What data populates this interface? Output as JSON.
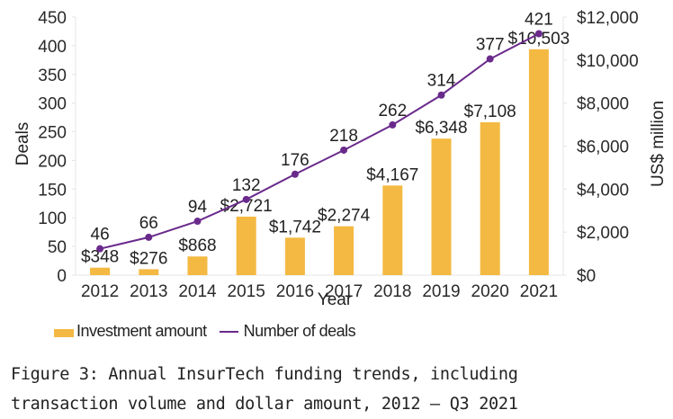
{
  "chart_data": {
    "type": "bar+line",
    "title": "",
    "categories": [
      "2012",
      "2013",
      "2014",
      "2015",
      "2016",
      "2017",
      "2018",
      "2019",
      "2020",
      "2021"
    ],
    "series": [
      {
        "name": "Investment amount",
        "type": "bar",
        "axis": "right",
        "values": [
          348,
          276,
          868,
          2721,
          1742,
          2274,
          4167,
          6348,
          7108,
          10503
        ],
        "labels": [
          "$348",
          "$276",
          "$868",
          "$2,721",
          "$1,742",
          "$2,274",
          "$4,167",
          "$6,348",
          "$7,108",
          "$10,503"
        ],
        "color": "#f4b942"
      },
      {
        "name": "Number of deals",
        "type": "line",
        "axis": "left",
        "values": [
          46,
          66,
          94,
          132,
          176,
          218,
          262,
          314,
          377,
          421
        ],
        "labels": [
          "46",
          "66",
          "94",
          "132",
          "176",
          "218",
          "262",
          "314",
          "377",
          "421"
        ],
        "color": "#6a2a8c"
      }
    ],
    "xlabel": "Year",
    "ylabel_left": "Deals",
    "ylabel_right": "US$ million",
    "ylim_left": [
      0,
      450
    ],
    "ylim_right": [
      0,
      12000
    ],
    "left_ticks": [
      "0",
      "50",
      "100",
      "150",
      "200",
      "250",
      "300",
      "350",
      "400",
      "450"
    ],
    "left_tick_values": [
      0,
      50,
      100,
      150,
      200,
      250,
      300,
      350,
      400,
      450
    ],
    "right_ticks": [
      "$0",
      "$2,000",
      "$4,000",
      "$6,000",
      "$8,000",
      "$10,000",
      "$12,000"
    ],
    "right_tick_values": [
      0,
      2000,
      4000,
      6000,
      8000,
      10000,
      12000
    ],
    "grid": false,
    "legend_position": "bottom-left"
  },
  "legend": {
    "bar_label": "Investment amount",
    "line_label": "Number of deals"
  },
  "caption": {
    "line1": "Figure 3: Annual InsurTech funding trends, including",
    "line2": "transaction volume and dollar amount, 2012 – Q3 2021"
  }
}
